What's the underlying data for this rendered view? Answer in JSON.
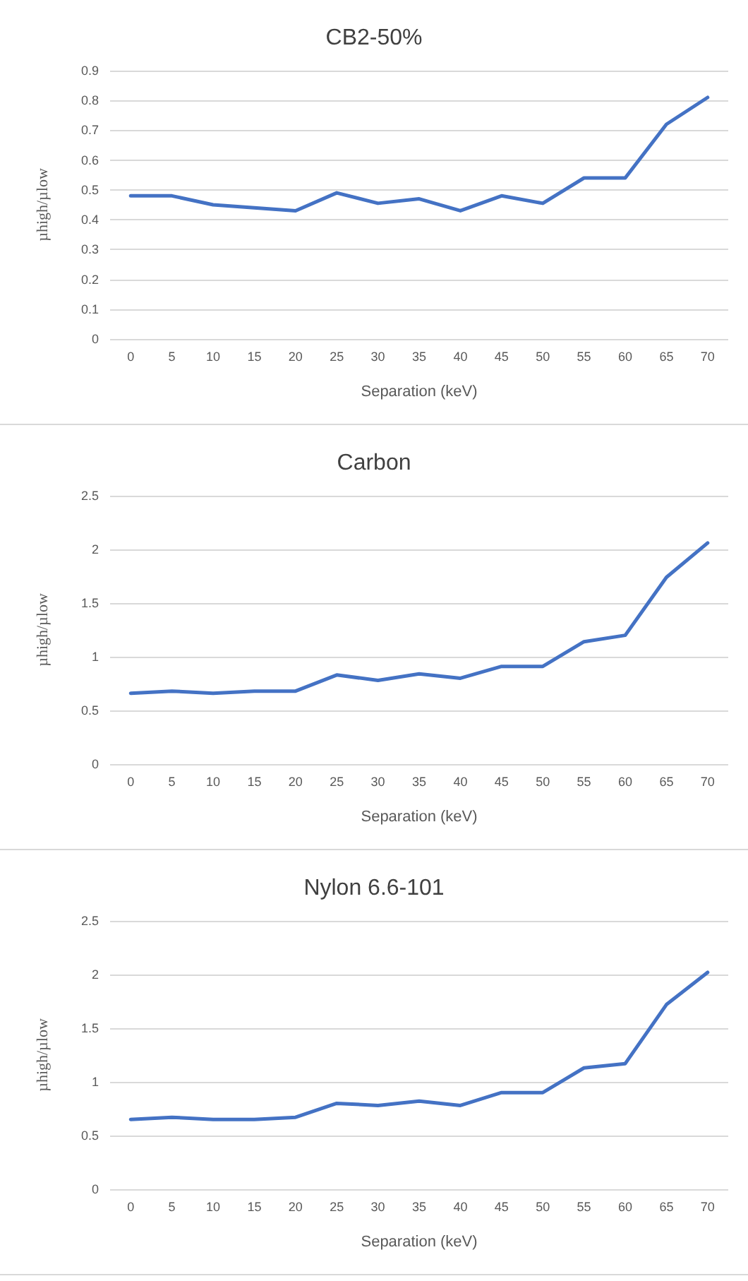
{
  "chart_data": [
    {
      "type": "line",
      "title": "CB2-50%",
      "xlabel": "Separation (keV)",
      "ylabel": "µhigh/µlow",
      "categories": [
        "0",
        "5",
        "10",
        "15",
        "20",
        "25",
        "30",
        "35",
        "40",
        "45",
        "50",
        "55",
        "60",
        "65",
        "70"
      ],
      "series": [
        {
          "color": "#4472c4",
          "values": [
            0.48,
            0.48,
            0.45,
            0.44,
            0.43,
            0.49,
            0.455,
            0.47,
            0.43,
            0.48,
            0.455,
            0.54,
            0.54,
            0.72,
            0.81
          ]
        }
      ],
      "ylim": [
        0,
        0.9
      ],
      "yticks": [
        0,
        0.1,
        0.2,
        0.3,
        0.4,
        0.5,
        0.6,
        0.7,
        0.8,
        0.9
      ],
      "grid": "y",
      "marker": "none",
      "line_style": "solid"
    },
    {
      "type": "line",
      "title": "Carbon",
      "xlabel": "Separation (keV)",
      "ylabel": "µhigh/µlow",
      "categories": [
        "0",
        "5",
        "10",
        "15",
        "20",
        "25",
        "30",
        "35",
        "40",
        "45",
        "50",
        "55",
        "60",
        "65",
        "70"
      ],
      "series": [
        {
          "color": "#4472c4",
          "values": [
            0.66,
            0.68,
            0.66,
            0.68,
            0.68,
            0.83,
            0.78,
            0.84,
            0.8,
            0.91,
            0.91,
            1.14,
            1.2,
            1.74,
            2.06
          ]
        }
      ],
      "ylim": [
        0,
        2.5
      ],
      "yticks": [
        0,
        0.5,
        1,
        1.5,
        2,
        2.5
      ],
      "grid": "y",
      "marker": "none",
      "line_style": "solid"
    },
    {
      "type": "line",
      "title": "Nylon 6.6-101",
      "xlabel": "Separation (keV)",
      "ylabel": "µhigh/µlow",
      "categories": [
        "0",
        "5",
        "10",
        "15",
        "20",
        "25",
        "30",
        "35",
        "40",
        "45",
        "50",
        "55",
        "60",
        "65",
        "70"
      ],
      "series": [
        {
          "color": "#4472c4",
          "values": [
            0.65,
            0.67,
            0.65,
            0.65,
            0.67,
            0.8,
            0.78,
            0.82,
            0.78,
            0.9,
            0.9,
            1.13,
            1.17,
            1.72,
            2.02
          ]
        }
      ],
      "ylim": [
        0,
        2.5
      ],
      "yticks": [
        0,
        0.5,
        1,
        1.5,
        2,
        2.5
      ],
      "grid": "y",
      "marker": "none",
      "line_style": "solid"
    }
  ]
}
